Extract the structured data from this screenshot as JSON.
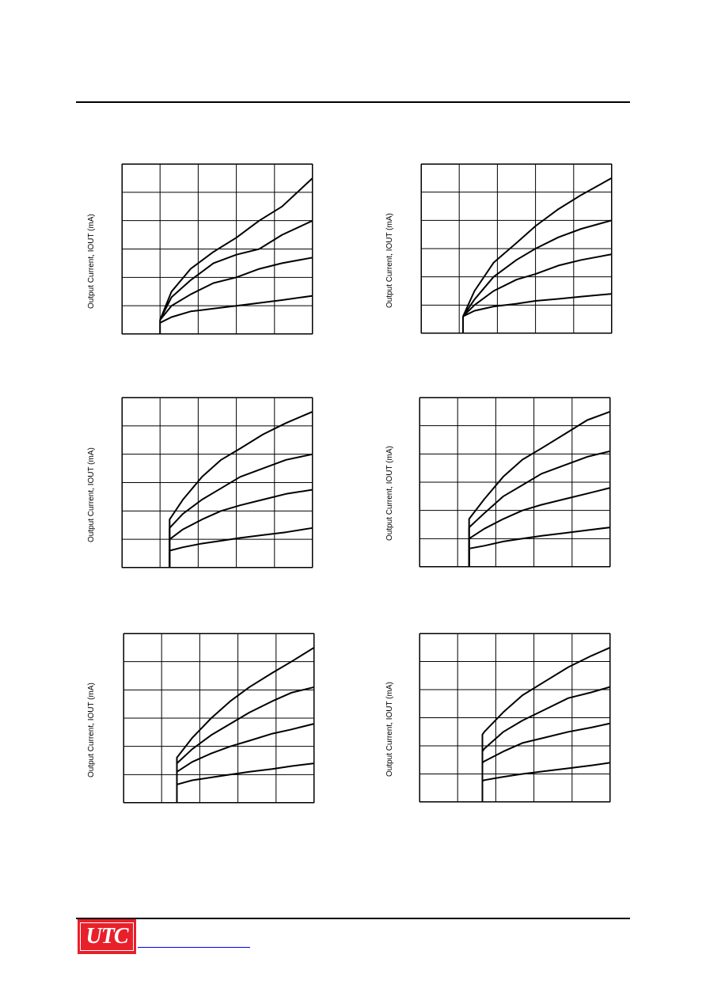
{
  "footer": {
    "logo_text": "UTC"
  },
  "chart_data": [
    {
      "type": "line",
      "ylabel": "Output Current, IOUT (mA)",
      "xlim": [
        0,
        5
      ],
      "ylim": [
        0,
        6
      ],
      "grid": true,
      "series": [
        {
          "x": [
            1.0,
            1.3,
            1.8,
            2.4,
            3.0,
            3.6,
            4.2,
            5.0
          ],
          "y": [
            0.5,
            1.5,
            2.3,
            2.9,
            3.4,
            4.0,
            4.5,
            5.5
          ]
        },
        {
          "x": [
            1.0,
            1.3,
            1.8,
            2.4,
            3.0,
            3.6,
            4.2,
            5.0
          ],
          "y": [
            0.5,
            1.3,
            1.9,
            2.5,
            2.8,
            3.0,
            3.5,
            4.0
          ]
        },
        {
          "x": [
            1.0,
            1.3,
            1.8,
            2.4,
            3.0,
            3.6,
            4.2,
            5.0
          ],
          "y": [
            0.5,
            1.0,
            1.4,
            1.8,
            2.0,
            2.3,
            2.5,
            2.7
          ]
        },
        {
          "x": [
            1.0,
            1.3,
            1.8,
            2.4,
            3.0,
            3.6,
            4.2,
            5.0
          ],
          "y": [
            0.4,
            0.6,
            0.8,
            0.9,
            1.0,
            1.1,
            1.2,
            1.35
          ]
        }
      ]
    },
    {
      "type": "line",
      "ylabel": "Output Current, IOUT (mA)",
      "xlim": [
        0,
        5
      ],
      "ylim": [
        0,
        6
      ],
      "grid": true,
      "series": [
        {
          "x": [
            1.1,
            1.4,
            1.9,
            2.5,
            3.0,
            3.6,
            4.2,
            5.0
          ],
          "y": [
            0.6,
            1.5,
            2.5,
            3.2,
            3.8,
            4.4,
            4.9,
            5.5
          ]
        },
        {
          "x": [
            1.1,
            1.4,
            1.9,
            2.5,
            3.0,
            3.6,
            4.2,
            5.0
          ],
          "y": [
            0.6,
            1.2,
            2.0,
            2.6,
            3.0,
            3.4,
            3.7,
            4.0
          ]
        },
        {
          "x": [
            1.1,
            1.4,
            1.9,
            2.5,
            3.0,
            3.6,
            4.2,
            5.0
          ],
          "y": [
            0.6,
            1.0,
            1.5,
            1.9,
            2.1,
            2.4,
            2.6,
            2.8
          ]
        },
        {
          "x": [
            1.1,
            1.4,
            1.9,
            2.5,
            3.0,
            3.6,
            4.2,
            5.0
          ],
          "y": [
            0.6,
            0.8,
            0.95,
            1.05,
            1.15,
            1.22,
            1.3,
            1.4
          ]
        }
      ]
    },
    {
      "type": "line",
      "ylabel": "Output Current, IOUT (mA)",
      "xlim": [
        0,
        5
      ],
      "ylim": [
        0,
        6
      ],
      "grid": true,
      "series": [
        {
          "x": [
            1.25,
            1.25,
            1.6,
            2.1,
            2.6,
            3.1,
            3.7,
            4.3,
            5.0
          ],
          "y": [
            0.0,
            1.7,
            2.4,
            3.2,
            3.8,
            4.2,
            4.7,
            5.1,
            5.5
          ]
        },
        {
          "x": [
            1.25,
            1.25,
            1.6,
            2.1,
            2.6,
            3.1,
            3.7,
            4.3,
            5.0
          ],
          "y": [
            0.0,
            1.4,
            1.9,
            2.4,
            2.8,
            3.2,
            3.5,
            3.8,
            4.0
          ]
        },
        {
          "x": [
            1.25,
            1.25,
            1.6,
            2.1,
            2.6,
            3.1,
            3.7,
            4.3,
            5.0
          ],
          "y": [
            0.0,
            1.0,
            1.35,
            1.7,
            2.0,
            2.2,
            2.4,
            2.6,
            2.75
          ]
        },
        {
          "x": [
            1.25,
            1.25,
            1.6,
            2.1,
            2.6,
            3.1,
            3.7,
            4.3,
            5.0
          ],
          "y": [
            0.0,
            0.6,
            0.72,
            0.85,
            0.95,
            1.05,
            1.15,
            1.25,
            1.4
          ]
        }
      ]
    },
    {
      "type": "line",
      "ylabel": "Output Current, IOUT (mA)",
      "xlim": [
        0,
        5
      ],
      "ylim": [
        0,
        6
      ],
      "grid": true,
      "series": [
        {
          "x": [
            1.3,
            1.3,
            1.7,
            2.2,
            2.7,
            3.2,
            3.8,
            4.4,
            5.0
          ],
          "y": [
            0.0,
            1.7,
            2.4,
            3.2,
            3.8,
            4.2,
            4.7,
            5.2,
            5.5
          ]
        },
        {
          "x": [
            1.3,
            1.3,
            1.7,
            2.2,
            2.7,
            3.2,
            3.8,
            4.4,
            5.0
          ],
          "y": [
            0.0,
            1.4,
            1.9,
            2.5,
            2.9,
            3.3,
            3.6,
            3.9,
            4.1
          ]
        },
        {
          "x": [
            1.3,
            1.3,
            1.7,
            2.2,
            2.7,
            3.2,
            3.8,
            4.4,
            5.0
          ],
          "y": [
            0.0,
            1.0,
            1.35,
            1.7,
            2.0,
            2.2,
            2.4,
            2.6,
            2.8
          ]
        },
        {
          "x": [
            1.3,
            1.3,
            1.7,
            2.2,
            2.7,
            3.2,
            3.8,
            4.4,
            5.0
          ],
          "y": [
            0.0,
            0.65,
            0.75,
            0.9,
            1.0,
            1.1,
            1.2,
            1.3,
            1.4
          ]
        }
      ]
    },
    {
      "type": "line",
      "ylabel": "Output Current, IOUT (mA)",
      "xlim": [
        0,
        5
      ],
      "ylim": [
        0,
        6
      ],
      "grid": true,
      "series": [
        {
          "x": [
            1.4,
            1.4,
            1.8,
            2.3,
            2.8,
            3.3,
            3.9,
            4.4,
            5.0
          ],
          "y": [
            0.0,
            1.6,
            2.3,
            3.0,
            3.6,
            4.1,
            4.6,
            5.0,
            5.5
          ]
        },
        {
          "x": [
            1.4,
            1.4,
            1.8,
            2.3,
            2.8,
            3.3,
            3.9,
            4.4,
            5.0
          ],
          "y": [
            0.0,
            1.4,
            1.9,
            2.4,
            2.8,
            3.2,
            3.6,
            3.9,
            4.1
          ]
        },
        {
          "x": [
            1.4,
            1.4,
            1.8,
            2.3,
            2.8,
            3.3,
            3.9,
            4.4,
            5.0
          ],
          "y": [
            0.0,
            1.1,
            1.45,
            1.75,
            2.0,
            2.2,
            2.45,
            2.6,
            2.8
          ]
        },
        {
          "x": [
            1.4,
            1.4,
            1.8,
            2.3,
            2.8,
            3.3,
            3.9,
            4.4,
            5.0
          ],
          "y": [
            0.0,
            0.65,
            0.8,
            0.9,
            1.0,
            1.1,
            1.2,
            1.3,
            1.4
          ]
        }
      ]
    },
    {
      "type": "line",
      "ylabel": "Output Current, IOUT (mA)",
      "xlim": [
        0,
        5
      ],
      "ylim": [
        0,
        6
      ],
      "grid": true,
      "series": [
        {
          "x": [
            1.65,
            1.65,
            1.7,
            2.2,
            2.7,
            3.3,
            3.9,
            4.5,
            5.0
          ],
          "y": [
            0.0,
            2.4,
            2.5,
            3.2,
            3.8,
            4.3,
            4.8,
            5.2,
            5.5
          ]
        },
        {
          "x": [
            1.65,
            1.65,
            1.7,
            2.2,
            2.7,
            3.3,
            3.9,
            4.5,
            5.0
          ],
          "y": [
            0.0,
            1.8,
            1.9,
            2.5,
            2.9,
            3.3,
            3.7,
            3.9,
            4.1
          ]
        },
        {
          "x": [
            1.65,
            1.65,
            1.7,
            2.2,
            2.7,
            3.3,
            3.9,
            4.5,
            5.0
          ],
          "y": [
            0.0,
            1.4,
            1.45,
            1.8,
            2.1,
            2.3,
            2.5,
            2.65,
            2.8
          ]
        },
        {
          "x": [
            1.65,
            1.65,
            1.7,
            2.2,
            2.7,
            3.3,
            3.9,
            4.5,
            5.0
          ],
          "y": [
            0.0,
            0.75,
            0.78,
            0.9,
            1.0,
            1.1,
            1.2,
            1.3,
            1.4
          ]
        }
      ]
    }
  ]
}
